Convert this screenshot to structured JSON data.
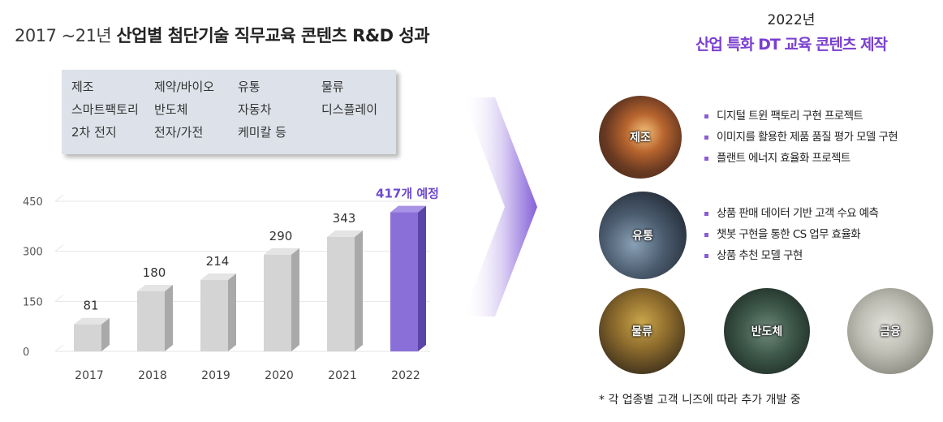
{
  "title": {
    "prefix": "2017 ~21년 ",
    "bold": "산업별 첨단기술 직무교육 콘텐츠 R&D 성과"
  },
  "industries": [
    "제조",
    "제약/바이오",
    "유통",
    "물류",
    "스마트팩토리",
    "반도체",
    "자동차",
    "디스플레이",
    "2차 전지",
    "전자/가전",
    "케미칼 등"
  ],
  "chart_data": {
    "type": "bar",
    "categories": [
      "2017",
      "2018",
      "2019",
      "2020",
      "2021",
      "2022"
    ],
    "values": [
      81,
      180,
      214,
      290,
      343,
      417
    ],
    "data_labels": [
      "81",
      "180",
      "214",
      "290",
      "343",
      "417개 예정"
    ],
    "yticks": [
      0,
      150,
      300,
      450
    ],
    "ylim": [
      0,
      450
    ],
    "highlight_index": 5,
    "colors": {
      "bar": "#d4d4d4",
      "bar_side": "#a9a9a9",
      "highlight": "#8a6fd8",
      "highlight_side": "#5b45a8"
    }
  },
  "right": {
    "year": "2022년",
    "title": "산업 특화 DT 교육 콘텐츠 제작",
    "sectors": [
      {
        "label": "제조",
        "bullets": [
          "디지털 트윈 팩토리 구현 프로젝트",
          "이미지를 활용한 제품 품질 평가 모델 구현",
          "플랜트 에너지 효율화 프로젝트"
        ]
      },
      {
        "label": "유통",
        "bullets": [
          "상품 판매 데이터 기반 고객 수요 예측",
          "챗봇 구현을 통한 CS 업무 효율화",
          "상품 추천 모델 구현"
        ]
      }
    ],
    "others": [
      "물류",
      "반도체",
      "금융"
    ],
    "footnote": "* 각 업종별 고객 니즈에 따라 추가 개발 중"
  }
}
